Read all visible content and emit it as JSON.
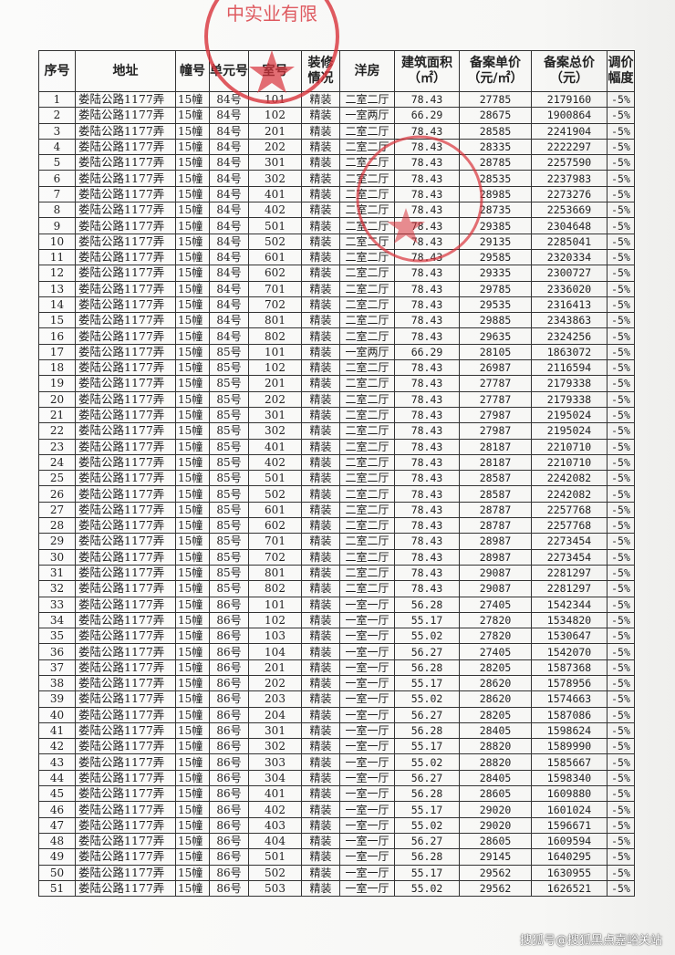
{
  "headers": [
    "序号",
    "地址",
    "幢号",
    "单元号",
    "室号",
    "装修情况",
    "洋房",
    "建筑面积（㎡）",
    "备案单价（元/㎡）",
    "备案总价（元）",
    "调价幅度"
  ],
  "rows": [
    [
      "1",
      "娄陆公路1177弄",
      "15幢",
      "84号",
      "101",
      "精装",
      "二室二厅",
      "78.43",
      "27785",
      "2179160",
      "-5%"
    ],
    [
      "2",
      "娄陆公路1177弄",
      "15幢",
      "84号",
      "102",
      "精装",
      "一室两厅",
      "66.29",
      "28675",
      "1900864",
      "-5%"
    ],
    [
      "3",
      "娄陆公路1177弄",
      "15幢",
      "84号",
      "201",
      "精装",
      "二室二厅",
      "78.43",
      "28585",
      "2241904",
      "-5%"
    ],
    [
      "4",
      "娄陆公路1177弄",
      "15幢",
      "84号",
      "202",
      "精装",
      "二室二厅",
      "78.43",
      "28335",
      "2222297",
      "-5%"
    ],
    [
      "5",
      "娄陆公路1177弄",
      "15幢",
      "84号",
      "301",
      "精装",
      "二室二厅",
      "78.43",
      "28785",
      "2257590",
      "-5%"
    ],
    [
      "6",
      "娄陆公路1177弄",
      "15幢",
      "84号",
      "302",
      "精装",
      "二室二厅",
      "78.43",
      "28535",
      "2237983",
      "-5%"
    ],
    [
      "7",
      "娄陆公路1177弄",
      "15幢",
      "84号",
      "401",
      "精装",
      "二室二厅",
      "78.43",
      "28985",
      "2273276",
      "-5%"
    ],
    [
      "8",
      "娄陆公路1177弄",
      "15幢",
      "84号",
      "402",
      "精装",
      "二室二厅",
      "78.43",
      "28735",
      "2253669",
      "-5%"
    ],
    [
      "9",
      "娄陆公路1177弄",
      "15幢",
      "84号",
      "501",
      "精装",
      "二室二厅",
      "78.43",
      "29385",
      "2304648",
      "-5%"
    ],
    [
      "10",
      "娄陆公路1177弄",
      "15幢",
      "84号",
      "502",
      "精装",
      "二室二厅",
      "78.43",
      "29135",
      "2285041",
      "-5%"
    ],
    [
      "11",
      "娄陆公路1177弄",
      "15幢",
      "84号",
      "601",
      "精装",
      "二室二厅",
      "78.43",
      "29585",
      "2320334",
      "-5%"
    ],
    [
      "12",
      "娄陆公路1177弄",
      "15幢",
      "84号",
      "602",
      "精装",
      "二室二厅",
      "78.43",
      "29335",
      "2300727",
      "-5%"
    ],
    [
      "13",
      "娄陆公路1177弄",
      "15幢",
      "84号",
      "701",
      "精装",
      "二室二厅",
      "78.43",
      "29785",
      "2336020",
      "-5%"
    ],
    [
      "14",
      "娄陆公路1177弄",
      "15幢",
      "84号",
      "702",
      "精装",
      "二室二厅",
      "78.43",
      "29535",
      "2316413",
      "-5%"
    ],
    [
      "15",
      "娄陆公路1177弄",
      "15幢",
      "84号",
      "801",
      "精装",
      "二室二厅",
      "78.43",
      "29885",
      "2343863",
      "-5%"
    ],
    [
      "16",
      "娄陆公路1177弄",
      "15幢",
      "84号",
      "802",
      "精装",
      "二室二厅",
      "78.43",
      "29635",
      "2324256",
      "-5%"
    ],
    [
      "17",
      "娄陆公路1177弄",
      "15幢",
      "85号",
      "101",
      "精装",
      "一室两厅",
      "66.29",
      "28105",
      "1863072",
      "-5%"
    ],
    [
      "18",
      "娄陆公路1177弄",
      "15幢",
      "85号",
      "102",
      "精装",
      "二室二厅",
      "78.43",
      "26987",
      "2116594",
      "-5%"
    ],
    [
      "19",
      "娄陆公路1177弄",
      "15幢",
      "85号",
      "201",
      "精装",
      "二室二厅",
      "78.43",
      "27787",
      "2179338",
      "-5%"
    ],
    [
      "20",
      "娄陆公路1177弄",
      "15幢",
      "85号",
      "202",
      "精装",
      "二室二厅",
      "78.43",
      "27787",
      "2179338",
      "-5%"
    ],
    [
      "21",
      "娄陆公路1177弄",
      "15幢",
      "85号",
      "301",
      "精装",
      "二室二厅",
      "78.43",
      "27987",
      "2195024",
      "-5%"
    ],
    [
      "22",
      "娄陆公路1177弄",
      "15幢",
      "85号",
      "302",
      "精装",
      "二室二厅",
      "78.43",
      "27987",
      "2195024",
      "-5%"
    ],
    [
      "23",
      "娄陆公路1177弄",
      "15幢",
      "85号",
      "401",
      "精装",
      "二室二厅",
      "78.43",
      "28187",
      "2210710",
      "-5%"
    ],
    [
      "24",
      "娄陆公路1177弄",
      "15幢",
      "85号",
      "402",
      "精装",
      "二室二厅",
      "78.43",
      "28187",
      "2210710",
      "-5%"
    ],
    [
      "25",
      "娄陆公路1177弄",
      "15幢",
      "85号",
      "501",
      "精装",
      "二室二厅",
      "78.43",
      "28587",
      "2242082",
      "-5%"
    ],
    [
      "26",
      "娄陆公路1177弄",
      "15幢",
      "85号",
      "502",
      "精装",
      "二室二厅",
      "78.43",
      "28587",
      "2242082",
      "-5%"
    ],
    [
      "27",
      "娄陆公路1177弄",
      "15幢",
      "85号",
      "601",
      "精装",
      "二室二厅",
      "78.43",
      "28787",
      "2257768",
      "-5%"
    ],
    [
      "28",
      "娄陆公路1177弄",
      "15幢",
      "85号",
      "602",
      "精装",
      "二室二厅",
      "78.43",
      "28787",
      "2257768",
      "-5%"
    ],
    [
      "29",
      "娄陆公路1177弄",
      "15幢",
      "85号",
      "701",
      "精装",
      "二室二厅",
      "78.43",
      "28987",
      "2273454",
      "-5%"
    ],
    [
      "30",
      "娄陆公路1177弄",
      "15幢",
      "85号",
      "702",
      "精装",
      "二室二厅",
      "78.43",
      "28987",
      "2273454",
      "-5%"
    ],
    [
      "31",
      "娄陆公路1177弄",
      "15幢",
      "85号",
      "801",
      "精装",
      "二室二厅",
      "78.43",
      "29087",
      "2281297",
      "-5%"
    ],
    [
      "32",
      "娄陆公路1177弄",
      "15幢",
      "85号",
      "802",
      "精装",
      "二室二厅",
      "78.43",
      "29087",
      "2281297",
      "-5%"
    ],
    [
      "33",
      "娄陆公路1177弄",
      "15幢",
      "86号",
      "101",
      "精装",
      "一室一厅",
      "56.28",
      "27405",
      "1542344",
      "-5%"
    ],
    [
      "34",
      "娄陆公路1177弄",
      "15幢",
      "86号",
      "102",
      "精装",
      "一室一厅",
      "55.17",
      "27820",
      "1534820",
      "-5%"
    ],
    [
      "35",
      "娄陆公路1177弄",
      "15幢",
      "86号",
      "103",
      "精装",
      "一室一厅",
      "55.02",
      "27820",
      "1530647",
      "-5%"
    ],
    [
      "36",
      "娄陆公路1177弄",
      "15幢",
      "86号",
      "104",
      "精装",
      "一室一厅",
      "56.27",
      "27405",
      "1542070",
      "-5%"
    ],
    [
      "37",
      "娄陆公路1177弄",
      "15幢",
      "86号",
      "201",
      "精装",
      "一室一厅",
      "56.28",
      "28205",
      "1587368",
      "-5%"
    ],
    [
      "38",
      "娄陆公路1177弄",
      "15幢",
      "86号",
      "202",
      "精装",
      "一室一厅",
      "55.17",
      "28620",
      "1578956",
      "-5%"
    ],
    [
      "39",
      "娄陆公路1177弄",
      "15幢",
      "86号",
      "203",
      "精装",
      "一室一厅",
      "55.02",
      "28620",
      "1574663",
      "-5%"
    ],
    [
      "40",
      "娄陆公路1177弄",
      "15幢",
      "86号",
      "204",
      "精装",
      "一室一厅",
      "56.27",
      "28205",
      "1587086",
      "-5%"
    ],
    [
      "41",
      "娄陆公路1177弄",
      "15幢",
      "86号",
      "301",
      "精装",
      "一室一厅",
      "56.28",
      "28405",
      "1598624",
      "-5%"
    ],
    [
      "42",
      "娄陆公路1177弄",
      "15幢",
      "86号",
      "302",
      "精装",
      "一室一厅",
      "55.17",
      "28820",
      "1589990",
      "-5%"
    ],
    [
      "43",
      "娄陆公路1177弄",
      "15幢",
      "86号",
      "303",
      "精装",
      "一室一厅",
      "55.02",
      "28820",
      "1585667",
      "-5%"
    ],
    [
      "44",
      "娄陆公路1177弄",
      "15幢",
      "86号",
      "304",
      "精装",
      "一室一厅",
      "56.27",
      "28405",
      "1598340",
      "-5%"
    ],
    [
      "45",
      "娄陆公路1177弄",
      "15幢",
      "86号",
      "401",
      "精装",
      "一室一厅",
      "56.28",
      "28605",
      "1609880",
      "-5%"
    ],
    [
      "46",
      "娄陆公路1177弄",
      "15幢",
      "86号",
      "402",
      "精装",
      "一室一厅",
      "55.17",
      "29020",
      "1601024",
      "-5%"
    ],
    [
      "47",
      "娄陆公路1177弄",
      "15幢",
      "86号",
      "403",
      "精装",
      "一室一厅",
      "55.02",
      "29020",
      "1596671",
      "-5%"
    ],
    [
      "48",
      "娄陆公路1177弄",
      "15幢",
      "86号",
      "404",
      "精装",
      "一室一厅",
      "56.27",
      "28605",
      "1609594",
      "-5%"
    ],
    [
      "49",
      "娄陆公路1177弄",
      "15幢",
      "86号",
      "501",
      "精装",
      "一室一厅",
      "56.28",
      "29145",
      "1640295",
      "-5%"
    ],
    [
      "50",
      "娄陆公路1177弄",
      "15幢",
      "86号",
      "502",
      "精装",
      "一室一厅",
      "55.17",
      "29562",
      "1630955",
      "-5%"
    ],
    [
      "51",
      "娄陆公路1177弄",
      "15幢",
      "86号",
      "503",
      "精装",
      "一室一厅",
      "55.02",
      "29562",
      "1626521",
      "-5%"
    ]
  ],
  "stamp_text": "中实业有限",
  "stamp_color": "#d8323a",
  "watermark": "搜狐号@搜狐黑点嘉峪关站"
}
